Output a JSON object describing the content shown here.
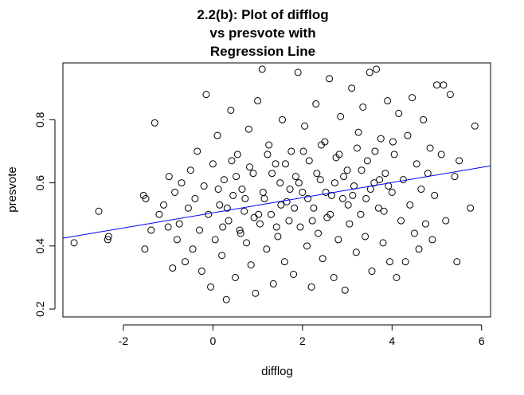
{
  "chart_data": {
    "type": "scatter",
    "title": [
      "2.2(b): Plot of difflog",
      "vs presvote with",
      "Regression Line"
    ],
    "xlabel": "difflog",
    "ylabel": "presvote",
    "xlim": [
      -3.35,
      6.2
    ],
    "ylim": [
      0.175,
      0.98
    ],
    "xticks": [
      -2,
      0,
      2,
      4,
      6
    ],
    "yticks": [
      0.2,
      0.4,
      0.6,
      0.8
    ],
    "xtick_labels": [
      "-2",
      "0",
      "2",
      "4",
      "6"
    ],
    "ytick_labels": [
      "0.2",
      "0.4",
      "0.6",
      "0.8"
    ],
    "point_color": "#000000",
    "line_color": "#0000ff",
    "regression": {
      "intercept": 0.505,
      "slope": 0.024
    },
    "points": [
      [
        -3.1,
        0.41
      ],
      [
        -2.55,
        0.51
      ],
      [
        -2.35,
        0.42
      ],
      [
        -2.33,
        0.43
      ],
      [
        -1.55,
        0.56
      ],
      [
        -1.52,
        0.39
      ],
      [
        -1.5,
        0.55
      ],
      [
        -1.38,
        0.45
      ],
      [
        -1.3,
        0.79
      ],
      [
        -1.2,
        0.5
      ],
      [
        -1.1,
        0.53
      ],
      [
        -1.0,
        0.46
      ],
      [
        -0.98,
        0.62
      ],
      [
        -0.9,
        0.33
      ],
      [
        -0.85,
        0.57
      ],
      [
        -0.8,
        0.42
      ],
      [
        -0.75,
        0.47
      ],
      [
        -0.7,
        0.6
      ],
      [
        -0.62,
        0.35
      ],
      [
        -0.55,
        0.52
      ],
      [
        -0.5,
        0.64
      ],
      [
        -0.45,
        0.39
      ],
      [
        -0.4,
        0.55
      ],
      [
        -0.35,
        0.7
      ],
      [
        -0.3,
        0.45
      ],
      [
        -0.25,
        0.32
      ],
      [
        -0.2,
        0.59
      ],
      [
        -0.15,
        0.88
      ],
      [
        -0.1,
        0.5
      ],
      [
        -0.05,
        0.27
      ],
      [
        0.0,
        0.66
      ],
      [
        0.05,
        0.42
      ],
      [
        0.1,
        0.75
      ],
      [
        0.15,
        0.53
      ],
      [
        0.2,
        0.37
      ],
      [
        0.25,
        0.61
      ],
      [
        0.3,
        0.23
      ],
      [
        0.35,
        0.48
      ],
      [
        0.4,
        0.83
      ],
      [
        0.45,
        0.56
      ],
      [
        0.5,
        0.3
      ],
      [
        0.55,
        0.69
      ],
      [
        0.6,
        0.45
      ],
      [
        0.65,
        0.58
      ],
      [
        0.7,
        0.51
      ],
      [
        0.75,
        0.41
      ],
      [
        0.8,
        0.77
      ],
      [
        0.85,
        0.34
      ],
      [
        0.9,
        0.63
      ],
      [
        0.95,
        0.25
      ],
      [
        1.0,
        0.86
      ],
      [
        1.05,
        0.47
      ],
      [
        1.1,
        0.96
      ],
      [
        1.15,
        0.55
      ],
      [
        1.2,
        0.39
      ],
      [
        1.25,
        0.72
      ],
      [
        1.3,
        0.5
      ],
      [
        1.35,
        0.28
      ],
      [
        1.4,
        0.66
      ],
      [
        1.45,
        0.43
      ],
      [
        1.5,
        0.6
      ],
      [
        1.55,
        0.8
      ],
      [
        1.6,
        0.35
      ],
      [
        1.65,
        0.54
      ],
      [
        1.7,
        0.48
      ],
      [
        1.75,
        0.7
      ],
      [
        1.8,
        0.31
      ],
      [
        1.85,
        0.62
      ],
      [
        1.9,
        0.95
      ],
      [
        1.95,
        0.46
      ],
      [
        2.0,
        0.57
      ],
      [
        2.05,
        0.78
      ],
      [
        2.1,
        0.4
      ],
      [
        2.15,
        0.67
      ],
      [
        2.2,
        0.27
      ],
      [
        2.25,
        0.52
      ],
      [
        2.3,
        0.85
      ],
      [
        2.35,
        0.44
      ],
      [
        2.4,
        0.61
      ],
      [
        2.45,
        0.36
      ],
      [
        2.5,
        0.73
      ],
      [
        2.55,
        0.49
      ],
      [
        2.6,
        0.93
      ],
      [
        2.65,
        0.56
      ],
      [
        2.7,
        0.3
      ],
      [
        2.75,
        0.68
      ],
      [
        2.8,
        0.42
      ],
      [
        2.85,
        0.81
      ],
      [
        2.9,
        0.55
      ],
      [
        2.95,
        0.26
      ],
      [
        3.0,
        0.64
      ],
      [
        3.05,
        0.47
      ],
      [
        3.1,
        0.9
      ],
      [
        3.15,
        0.59
      ],
      [
        3.2,
        0.38
      ],
      [
        3.25,
        0.76
      ],
      [
        3.3,
        0.5
      ],
      [
        3.35,
        0.84
      ],
      [
        3.4,
        0.43
      ],
      [
        3.45,
        0.67
      ],
      [
        3.5,
        0.95
      ],
      [
        3.55,
        0.32
      ],
      [
        3.6,
        0.6
      ],
      [
        3.65,
        0.96
      ],
      [
        3.7,
        0.52
      ],
      [
        3.75,
        0.74
      ],
      [
        3.8,
        0.41
      ],
      [
        3.85,
        0.63
      ],
      [
        3.9,
        0.86
      ],
      [
        3.95,
        0.35
      ],
      [
        4.0,
        0.57
      ],
      [
        4.05,
        0.69
      ],
      [
        4.1,
        0.3
      ],
      [
        4.15,
        0.82
      ],
      [
        4.2,
        0.48
      ],
      [
        4.25,
        0.61
      ],
      [
        4.3,
        0.35
      ],
      [
        4.35,
        0.75
      ],
      [
        4.4,
        0.53
      ],
      [
        4.45,
        0.87
      ],
      [
        4.5,
        0.44
      ],
      [
        4.55,
        0.66
      ],
      [
        4.6,
        0.39
      ],
      [
        4.65,
        0.58
      ],
      [
        4.7,
        0.8
      ],
      [
        4.75,
        0.47
      ],
      [
        4.8,
        0.63
      ],
      [
        4.85,
        0.71
      ],
      [
        4.9,
        0.42
      ],
      [
        4.95,
        0.56
      ],
      [
        5.0,
        0.91
      ],
      [
        5.1,
        0.69
      ],
      [
        5.15,
        0.91
      ],
      [
        5.2,
        0.48
      ],
      [
        5.3,
        0.88
      ],
      [
        5.4,
        0.62
      ],
      [
        5.45,
        0.35
      ],
      [
        5.5,
        0.67
      ],
      [
        5.75,
        0.52
      ],
      [
        5.85,
        0.78
      ],
      [
        0.12,
        0.58
      ],
      [
        0.32,
        0.52
      ],
      [
        0.52,
        0.62
      ],
      [
        0.72,
        0.55
      ],
      [
        0.92,
        0.49
      ],
      [
        1.12,
        0.57
      ],
      [
        1.32,
        0.63
      ],
      [
        1.52,
        0.53
      ],
      [
        1.72,
        0.58
      ],
      [
        1.92,
        0.6
      ],
      [
        2.12,
        0.55
      ],
      [
        2.32,
        0.63
      ],
      [
        2.52,
        0.57
      ],
      [
        2.72,
        0.6
      ],
      [
        2.92,
        0.62
      ],
      [
        3.12,
        0.56
      ],
      [
        3.32,
        0.64
      ],
      [
        3.52,
        0.58
      ],
      [
        3.72,
        0.61
      ],
      [
        3.92,
        0.59
      ],
      [
        0.22,
        0.46
      ],
      [
        0.62,
        0.44
      ],
      [
        1.02,
        0.5
      ],
      [
        1.42,
        0.46
      ],
      [
        1.82,
        0.52
      ],
      [
        2.22,
        0.48
      ],
      [
        2.62,
        0.5
      ],
      [
        3.02,
        0.53
      ],
      [
        3.42,
        0.55
      ],
      [
        3.82,
        0.51
      ],
      [
        0.42,
        0.67
      ],
      [
        0.82,
        0.65
      ],
      [
        1.22,
        0.69
      ],
      [
        1.62,
        0.66
      ],
      [
        2.02,
        0.7
      ],
      [
        2.42,
        0.72
      ],
      [
        2.82,
        0.69
      ],
      [
        3.22,
        0.71
      ],
      [
        3.62,
        0.7
      ],
      [
        4.02,
        0.73
      ]
    ]
  }
}
